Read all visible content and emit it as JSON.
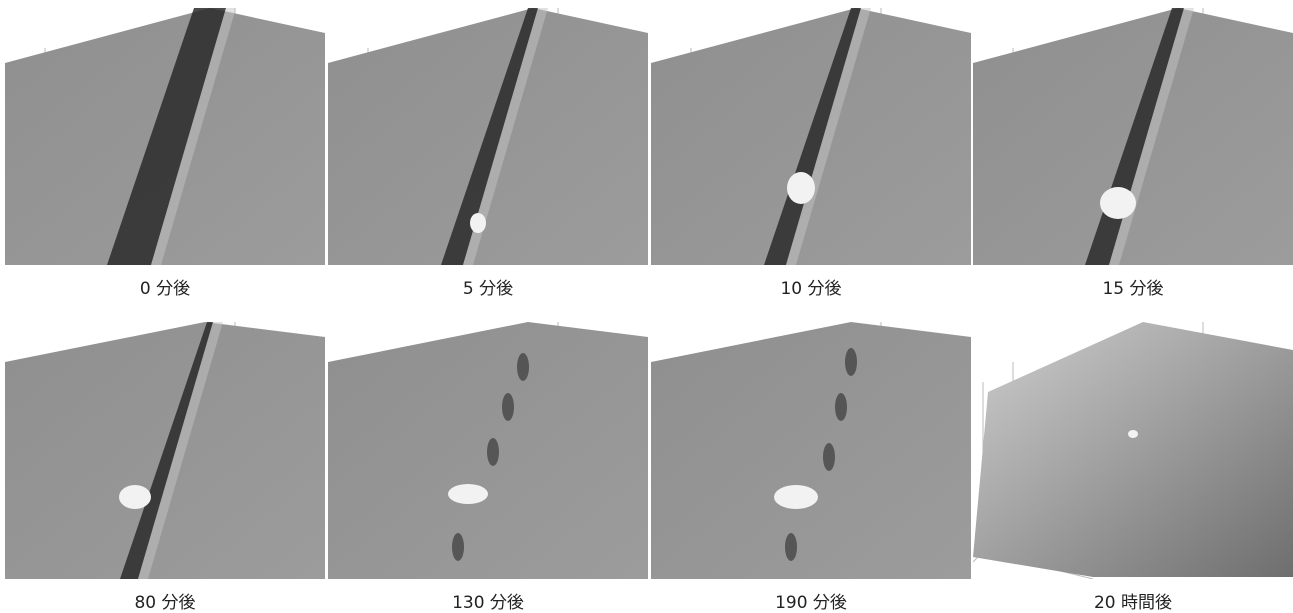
{
  "panels": [
    {
      "caption": "0 分後"
    },
    {
      "caption": "5 分後"
    },
    {
      "caption": "10 分後"
    },
    {
      "caption": "15 分後"
    },
    {
      "caption": "80 分後"
    },
    {
      "caption": "130 分後"
    },
    {
      "caption": "190 分後"
    },
    {
      "caption": "20 時間後"
    }
  ]
}
